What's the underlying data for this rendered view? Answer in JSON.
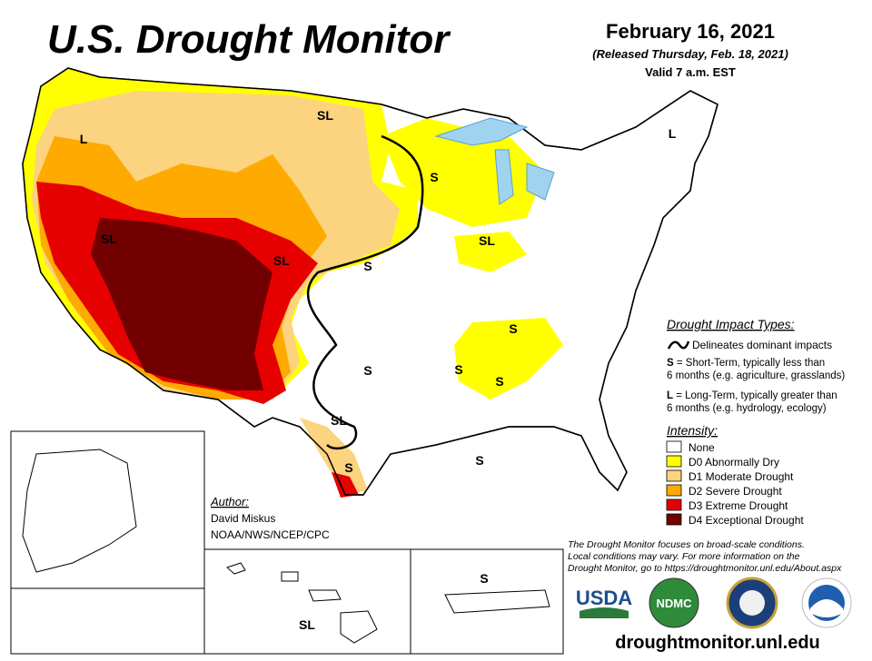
{
  "header": {
    "title": "U.S. Drought Monitor",
    "date": "February 16, 2021",
    "released": "(Released Thursday, Feb. 18, 2021)",
    "valid": "Valid 7 a.m. EST"
  },
  "impact_types": {
    "heading": "Drought Impact Types:",
    "line_label": "Delineates dominant impacts",
    "short_key": "S",
    "short_text_1": " = Short-Term, typically less than",
    "short_text_2": "6 months (e.g. agriculture, grasslands)",
    "long_key": "L",
    "long_text_1": " = Long-Term, typically greater than",
    "long_text_2": "6 months (e.g. hydrology, ecology)"
  },
  "intensity": {
    "heading": "Intensity:",
    "items": [
      {
        "label": "None",
        "color": "#ffffff"
      },
      {
        "label": "D0 Abnormally Dry",
        "color": "#ffff00"
      },
      {
        "label": "D1 Moderate Drought",
        "color": "#fcd37f"
      },
      {
        "label": "D2 Severe Drought",
        "color": "#ffaa00"
      },
      {
        "label": "D3 Extreme Drought",
        "color": "#e60000"
      },
      {
        "label": "D4 Exceptional Drought",
        "color": "#730000"
      }
    ]
  },
  "author": {
    "heading": "Author:",
    "name": "David Miskus",
    "affiliation": "NOAA/NWS/NCEP/CPC"
  },
  "note": {
    "lines": [
      "The Drought Monitor focuses on broad-scale conditions.",
      "Local conditions may vary. For more information on the",
      "Drought Monitor, go to https://droughtmonitor.unl.edu/About.aspx"
    ]
  },
  "map_labels": [
    "SL",
    "L",
    "L",
    "S",
    "SL",
    "SL",
    "SL",
    "S",
    "S",
    "S",
    "S",
    "S",
    "SL",
    "S",
    "S",
    "S",
    "SL"
  ],
  "logos": [
    "USDA",
    "NDMC"
  ],
  "url": "droughtmonitor.unl.edu"
}
